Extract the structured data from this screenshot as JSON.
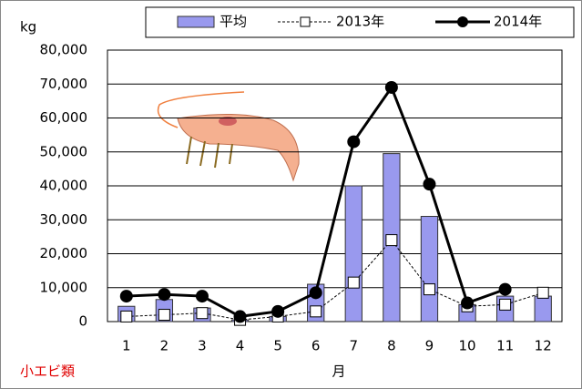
{
  "chart_data": {
    "type": "bar_line",
    "y_label": "kg",
    "x_label": "月",
    "annotation": "小エビ類",
    "categories": [
      "1",
      "2",
      "3",
      "4",
      "5",
      "6",
      "7",
      "8",
      "9",
      "10",
      "11",
      "12"
    ],
    "series": [
      {
        "name": "平均",
        "type": "bar",
        "color": "#9999ee",
        "values": [
          4500,
          6500,
          4000,
          500,
          1500,
          11000,
          40000,
          49500,
          31000,
          5000,
          7500,
          7500
        ]
      },
      {
        "name": "2013年",
        "type": "line",
        "style": "dashed",
        "color": "#000000",
        "values": [
          1500,
          2000,
          2500,
          500,
          1500,
          3000,
          11500,
          24000,
          9500,
          4500,
          5000,
          8500
        ]
      },
      {
        "name": "2014年",
        "type": "line",
        "style": "solid",
        "color": "#000000",
        "values": [
          7500,
          8000,
          7500,
          1500,
          3000,
          8500,
          53000,
          69000,
          40500,
          5500,
          9500,
          null
        ]
      }
    ],
    "ylim": [
      0,
      80000
    ],
    "yticks": [
      0,
      {
        "value": 10000,
        "label": "10,000"
      },
      {
        "value": 20000,
        "label": "20,000"
      },
      {
        "value": 30000,
        "label": "30,000"
      },
      {
        "value": 40000,
        "label": "40,000"
      },
      {
        "value": 50000,
        "label": "50,000"
      },
      {
        "value": 60000,
        "label": "60,000"
      },
      {
        "value": 70000,
        "label": "70,000"
      },
      {
        "value": 80000,
        "label": "80,000"
      }
    ],
    "grid": true,
    "legend": "top"
  }
}
